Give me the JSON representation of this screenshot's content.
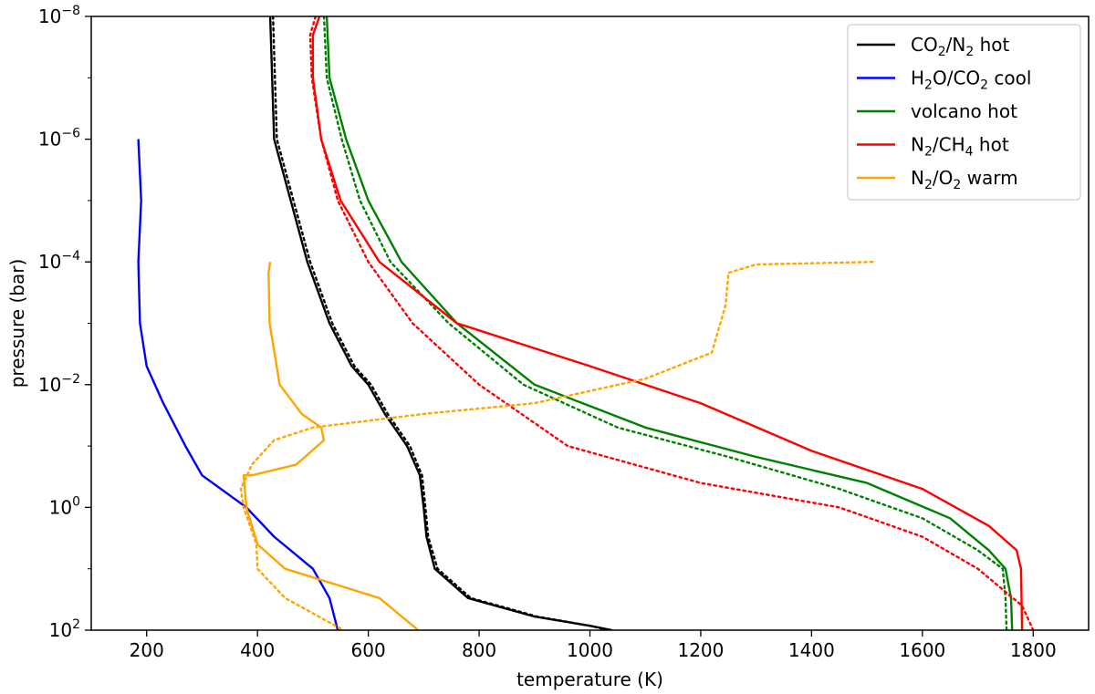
{
  "chart_data": {
    "type": "line",
    "xlabel": "temperature (K)",
    "ylabel": "pressure (bar)",
    "xlim": [
      100,
      1900
    ],
    "ylim": [
      100,
      1e-08
    ],
    "yscale": "log",
    "y_inverted": true,
    "grid": false,
    "legend_position": "top-right",
    "x_ticks": [
      200,
      400,
      600,
      800,
      1000,
      1200,
      1400,
      1600,
      1800
    ],
    "y_ticks": [
      {
        "value": 1e-08,
        "base": "10",
        "exp": "−8"
      },
      {
        "value": 1e-06,
        "base": "10",
        "exp": "−6"
      },
      {
        "value": 0.0001,
        "base": "10",
        "exp": "−4"
      },
      {
        "value": 0.01,
        "base": "10",
        "exp": "−2"
      },
      {
        "value": 1,
        "base": "10",
        "exp": "0"
      },
      {
        "value": 100,
        "base": "10",
        "exp": "2"
      }
    ],
    "series": [
      {
        "name": "CO₂/N₂ hot",
        "color": "#000000",
        "legend_parts": [
          [
            "CO",
            ""
          ],
          [
            "2",
            "sub"
          ],
          [
            "/N",
            ""
          ],
          [
            "2",
            "sub"
          ],
          [
            " hot",
            ""
          ]
        ],
        "solid": [
          [
            423,
            1e-08
          ],
          [
            430,
            1e-06
          ],
          [
            460,
            1e-05
          ],
          [
            490,
            0.0001
          ],
          [
            530,
            0.001
          ],
          [
            570,
            0.005
          ],
          [
            600,
            0.01
          ],
          [
            630,
            0.03
          ],
          [
            670,
            0.1
          ],
          [
            693,
            0.3
          ],
          [
            700,
            1
          ],
          [
            705,
            3
          ],
          [
            720,
            10
          ],
          [
            780,
            30
          ],
          [
            900,
            60
          ],
          [
            1000,
            85
          ],
          [
            1040,
            100
          ]
        ],
        "dotted": [
          [
            428,
            1e-08
          ],
          [
            435,
            1e-06
          ],
          [
            465,
            1e-05
          ],
          [
            495,
            0.0001
          ],
          [
            535,
            0.001
          ],
          [
            575,
            0.005
          ],
          [
            605,
            0.01
          ],
          [
            635,
            0.03
          ],
          [
            675,
            0.1
          ],
          [
            697,
            0.3
          ],
          [
            703,
            1
          ],
          [
            708,
            3
          ],
          [
            725,
            10
          ],
          [
            785,
            30
          ],
          [
            905,
            60
          ],
          [
            1000,
            85
          ],
          [
            1035,
            100
          ]
        ]
      },
      {
        "name": "H₂O/CO₂ cool",
        "color": "#0000ff",
        "legend_parts": [
          [
            "H",
            ""
          ],
          [
            "2",
            "sub"
          ],
          [
            "O/CO",
            ""
          ],
          [
            "2",
            "sub"
          ],
          [
            " cool",
            ""
          ]
        ],
        "solid": [
          [
            185,
            1e-06
          ],
          [
            190,
            1e-05
          ],
          [
            185,
            0.0001
          ],
          [
            188,
            0.001
          ],
          [
            200,
            0.005
          ],
          [
            230,
            0.02
          ],
          [
            270,
            0.1
          ],
          [
            300,
            0.3
          ],
          [
            380,
            1
          ],
          [
            430,
            3
          ],
          [
            500,
            10
          ],
          [
            530,
            30
          ],
          [
            545,
            100
          ]
        ]
      },
      {
        "name": "volcano hot",
        "color": "#008000",
        "legend_parts": [
          [
            "volcano hot",
            ""
          ]
        ],
        "solid": [
          [
            525,
            1e-08
          ],
          [
            530,
            1e-07
          ],
          [
            560,
            1e-06
          ],
          [
            600,
            1e-05
          ],
          [
            660,
            0.0001
          ],
          [
            760,
            0.001
          ],
          [
            900,
            0.01
          ],
          [
            1100,
            0.05
          ],
          [
            1300,
            0.15
          ],
          [
            1500,
            0.4
          ],
          [
            1650,
            1.5
          ],
          [
            1720,
            5
          ],
          [
            1750,
            10
          ],
          [
            1760,
            30
          ],
          [
            1762,
            100
          ]
        ],
        "dotted": [
          [
            520,
            1e-08
          ],
          [
            525,
            1e-07
          ],
          [
            552,
            1e-06
          ],
          [
            585,
            1e-05
          ],
          [
            640,
            0.0001
          ],
          [
            745,
            0.001
          ],
          [
            880,
            0.01
          ],
          [
            1050,
            0.05
          ],
          [
            1250,
            0.15
          ],
          [
            1450,
            0.5
          ],
          [
            1600,
            1.5
          ],
          [
            1700,
            5
          ],
          [
            1745,
            10
          ],
          [
            1750,
            30
          ],
          [
            1752,
            100
          ]
        ]
      },
      {
        "name": "N₂/CH₄ hot",
        "color": "#ff0000",
        "legend_parts": [
          [
            "N",
            ""
          ],
          [
            "2",
            "sub"
          ],
          [
            "/CH",
            ""
          ],
          [
            "4",
            "sub"
          ],
          [
            " hot",
            ""
          ]
        ],
        "solid": [
          [
            512,
            1e-08
          ],
          [
            500,
            2e-08
          ],
          [
            500,
            1e-07
          ],
          [
            515,
            1e-06
          ],
          [
            550,
            1e-05
          ],
          [
            620,
            0.0001
          ],
          [
            760,
            0.001
          ],
          [
            1000,
            0.005
          ],
          [
            1200,
            0.02
          ],
          [
            1400,
            0.12
          ],
          [
            1600,
            0.5
          ],
          [
            1720,
            2
          ],
          [
            1770,
            5
          ],
          [
            1778,
            10
          ],
          [
            1780,
            100
          ]
        ],
        "dotted": [
          [
            505,
            1e-08
          ],
          [
            495,
            2e-08
          ],
          [
            498,
            1e-07
          ],
          [
            515,
            1e-06
          ],
          [
            545,
            1e-05
          ],
          [
            600,
            0.0001
          ],
          [
            680,
            0.001
          ],
          [
            800,
            0.01
          ],
          [
            960,
            0.1
          ],
          [
            1200,
            0.4
          ],
          [
            1450,
            1
          ],
          [
            1600,
            3
          ],
          [
            1700,
            10
          ],
          [
            1780,
            40
          ],
          [
            1800,
            100
          ]
        ]
      },
      {
        "name": "N₂/O₂ warm",
        "color": "#ffa500",
        "legend_parts": [
          [
            "N",
            ""
          ],
          [
            "2",
            "sub"
          ],
          [
            "/O",
            ""
          ],
          [
            "2",
            "sub"
          ],
          [
            " warm",
            ""
          ]
        ],
        "solid": [
          [
            423,
            0.0001
          ],
          [
            420,
            0.00015
          ],
          [
            422,
            0.001
          ],
          [
            440,
            0.01
          ],
          [
            480,
            0.03
          ],
          [
            515,
            0.05
          ],
          [
            520,
            0.08
          ],
          [
            470,
            0.2
          ],
          [
            390,
            0.3
          ],
          [
            375,
            0.3
          ],
          [
            380,
            1
          ],
          [
            400,
            4
          ],
          [
            450,
            10
          ],
          [
            620,
            30
          ],
          [
            690,
            100
          ]
        ],
        "dotted": [
          [
            1510,
            0.0001
          ],
          [
            1300,
            0.00011
          ],
          [
            1250,
            0.00015
          ],
          [
            1245,
            0.0005
          ],
          [
            1220,
            0.003
          ],
          [
            1100,
            0.008
          ],
          [
            900,
            0.02
          ],
          [
            700,
            0.03
          ],
          [
            500,
            0.05
          ],
          [
            430,
            0.08
          ],
          [
            390,
            0.2
          ],
          [
            370,
            0.5
          ],
          [
            375,
            1
          ],
          [
            398,
            4
          ],
          [
            400,
            10
          ],
          [
            450,
            30
          ],
          [
            555,
            100
          ]
        ]
      }
    ]
  }
}
